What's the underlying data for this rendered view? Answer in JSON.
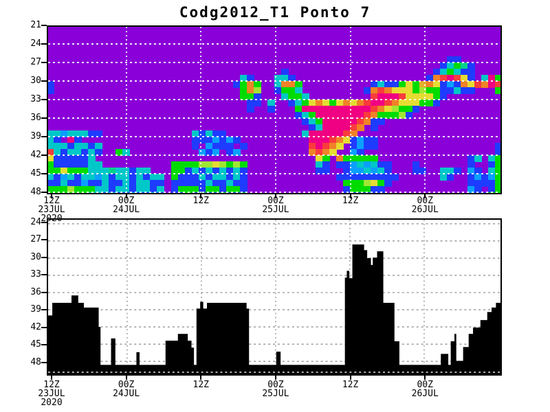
{
  "title": "Codg2012_T1 Ponto 7",
  "accent_colors": {
    "heatmap_background": "#8A00D8",
    "bar_fill": "#000000",
    "grid_top": "#FFFFFF",
    "grid_bottom": "#9B9B9B",
    "frame": "#000000"
  },
  "chart_data": [
    {
      "type": "heatmap",
      "title": "Codg2012_T1 Ponto 7",
      "background": "#8A00D8",
      "legend_position": "none",
      "grid": true,
      "y_axis": {
        "ticks": [
          21,
          24,
          27,
          30,
          33,
          36,
          39,
          42,
          45,
          48
        ],
        "grid_values": [
          24,
          27,
          30,
          33,
          36,
          39,
          42,
          45,
          48
        ],
        "direction": "down",
        "range": [
          21,
          48.3
        ]
      },
      "x_axis": {
        "tick_hours": [
          0,
          12,
          24,
          36,
          48,
          60
        ],
        "tick_labels": [
          [
            "12Z",
            "23JUL",
            "2020"
          ],
          [
            "00Z",
            "24JUL"
          ],
          [
            "12Z"
          ],
          [
            "00Z",
            "25JUL"
          ],
          [
            "12Z"
          ],
          [
            "00Z",
            "26JUL"
          ]
        ],
        "gridline_hours": [
          12,
          24,
          36,
          48,
          60
        ],
        "range_hours": [
          -0.8,
          72.4
        ]
      },
      "palette": {
        "B": "#1E3CFF",
        "M": "#0AA0FF",
        "C": "#00C8C8",
        "A": "#00D28C",
        "G": "#00DC00",
        "L": "#A0E632",
        "Y": "#E6DC32",
        "D": "#E6AF2D",
        "O": "#F08228",
        "R": "#FA3C3C",
        "K": "#F00082"
      },
      "row_start_value": 21,
      "row_step_value": 1,
      "col_start_hour": -0.8,
      "col_width_hours": 1.108,
      "rows": [
        "..................................................................",
        "..................................................................",
        "..................................................................",
        "..................................................................",
        "..................................................................",
        "..........................................................BB......",
        ".........................................................BCGAB....",
        "..................................B.....................BCGCBB....",
        "............................CB...CCB...................BORKRYB.CKG",
        "B..........................BGOG..COOG..........BCBBGYGDOYBMBOYROKR",
        "B...........................GOL..BGGC.........BOROYYYGLGGBBCBB...G",
        "............................GGB...CGGC.........RKKKRYYYYGB........",
        ".............................BB.C..BCGYOYGYOYORKKROYYYGGB.........",
        ".............................B..B...GKKKKKKKKKKROYLGGB............",
        "....................................BCGKKKKKKKROGGGLB.............",
        ".....................................BCGKKKKKROBB.................",
        "......................................BCKKKKRO.B..................",
        "CCMCCCBB.............CBCBB...........CKKKKKRO.....................",
        "CB.KB................BBBMBMB..........KKKROYBMBB..................",
        "CCCBCCBC.............B.MBBB.B.........RKROY.BMBB.................B",
        "RCBCCBCB..GC..........MBM.BM..........OROY..MB...................B",
        "YBBBBBC................................YG.OGGGGG.............BC.CG",
        "GBBBBBCC..........GGGGLLYLGLG..........CB.BBMCMCBB...B.......B..BG",
        "GGYGGGCCCACCBCC...GGBCBCBCBCB..........BB..BMMCMCB...BB..CCB.MB.CG",
        "CBMCBCCMCBCCBCBCC.GBBBCBCCBCB.............BBBBBBBBB......CB..BMBMG",
        "BBCBBMBBCBBCBCCBB.BBBBBCBBCBB..............GGGLYGB...........BBBBG",
        "GGGLGGGCCBCCBCCBC.BGGGBGGBGGB..............BGGGBB............MB.BG",
        "GGGGGGCCBCBBCBBCB.BBGBGBBGBBG..............BBBB................BG"
      ]
    },
    {
      "type": "area",
      "fill": "#000000",
      "grid": true,
      "y_axis": {
        "ticks": [
          24,
          27,
          30,
          33,
          36,
          39,
          42,
          45,
          48
        ],
        "grid_values": [
          24,
          27,
          30,
          33,
          36,
          39,
          42,
          45,
          48
        ],
        "direction": "down",
        "range": [
          23.3,
          50.2
        ]
      },
      "x_axis": {
        "tick_hours": [
          0,
          12,
          24,
          36,
          48,
          60
        ],
        "tick_labels": [
          [
            "12Z",
            "23JUL",
            "2020"
          ],
          [
            "00Z",
            "24JUL"
          ],
          [
            "12Z"
          ],
          [
            "00Z",
            "25JUL"
          ],
          [
            "12Z"
          ],
          [
            "00Z",
            "26JUL"
          ]
        ],
        "gridline_hours": [
          12,
          24,
          36,
          48,
          60
        ],
        "range_hours": [
          -0.8,
          72.4
        ]
      },
      "baseline_value": 48.6,
      "segments": [
        [
          -0.8,
          -0.1,
          40.0
        ],
        [
          -0.1,
          3,
          37.8
        ],
        [
          3,
          4.1,
          36.5
        ],
        [
          4.1,
          5,
          37.8
        ],
        [
          5,
          7.4,
          38.6
        ],
        [
          7.4,
          7.7,
          42.0
        ],
        [
          7.7,
          9.4,
          48.6
        ],
        [
          9.4,
          10.1,
          44.0
        ],
        [
          10.1,
          13.5,
          48.6
        ],
        [
          13.5,
          14,
          46.4
        ],
        [
          14,
          18.2,
          48.6
        ],
        [
          18.2,
          20.2,
          44.4
        ],
        [
          20.2,
          21.8,
          43.2
        ],
        [
          21.8,
          22.4,
          44.4
        ],
        [
          22.4,
          22.8,
          45.6
        ],
        [
          22.8,
          23.2,
          48.6
        ],
        [
          23.2,
          23.8,
          38.8
        ],
        [
          23.8,
          24.3,
          37.6
        ],
        [
          24.3,
          24.9,
          38.8
        ],
        [
          24.9,
          31.3,
          37.8
        ],
        [
          31.3,
          31.7,
          38.8
        ],
        [
          31.7,
          36.1,
          48.6
        ],
        [
          36.1,
          36.8,
          46.3
        ],
        [
          36.8,
          47.2,
          48.6
        ],
        [
          47.2,
          47.5,
          33.4
        ],
        [
          47.5,
          47.9,
          32.2
        ],
        [
          47.9,
          48.4,
          33.5
        ],
        [
          48.4,
          50.3,
          27.6
        ],
        [
          50.3,
          50.8,
          28.6
        ],
        [
          50.8,
          51.4,
          30.0
        ],
        [
          51.4,
          51.7,
          31.2
        ],
        [
          51.7,
          52.4,
          29.9
        ],
        [
          52.4,
          53.4,
          28.8
        ],
        [
          53.4,
          55.2,
          37.8
        ],
        [
          55.2,
          56,
          44.5
        ],
        [
          56,
          62.7,
          48.6
        ],
        [
          62.7,
          63.9,
          46.7
        ],
        [
          63.9,
          64.3,
          48.6
        ],
        [
          64.3,
          64.9,
          44.5
        ],
        [
          64.9,
          65.2,
          43.2
        ],
        [
          65.2,
          66.3,
          47.9
        ],
        [
          66.3,
          67.2,
          45.5
        ],
        [
          67.2,
          67.9,
          43.2
        ],
        [
          67.9,
          69.1,
          42.1
        ],
        [
          69.1,
          70.2,
          40.8
        ],
        [
          70.2,
          70.9,
          39.4
        ],
        [
          70.9,
          71.6,
          38.6
        ],
        [
          71.6,
          72.4,
          37.8
        ]
      ]
    }
  ]
}
